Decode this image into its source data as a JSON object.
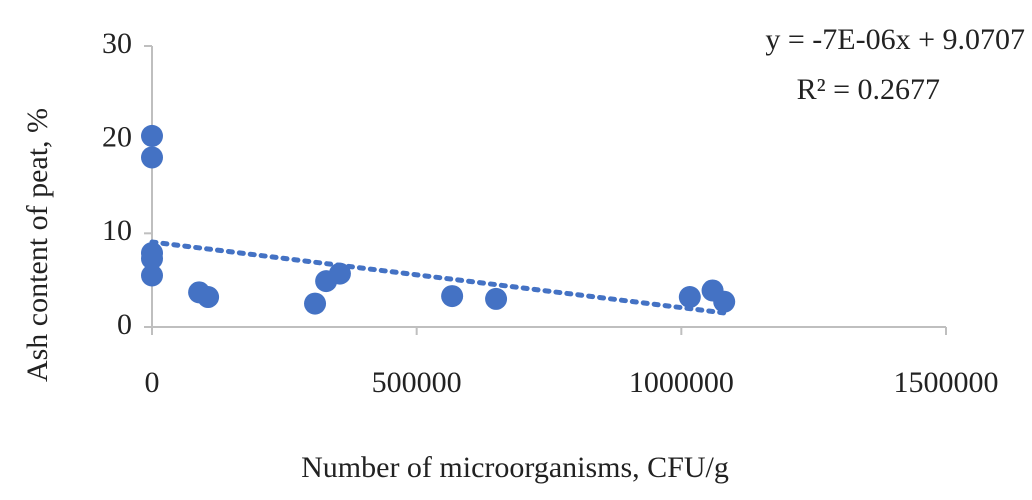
{
  "chart_data": {
    "type": "scatter",
    "x_label": "Number of microorganisms, CFU/g",
    "y_label": "Ash content of peat, %",
    "annotations": [
      "y = -7E-06x + 9.0707",
      "R² = 0.2677"
    ],
    "color": "#4472c4",
    "series": [
      {
        "x": [
          0,
          0,
          0,
          0,
          0,
          89000,
          106000,
          308000,
          329000,
          355000,
          567000,
          650000,
          1016000,
          1059000,
          1081000
        ],
        "values": [
          20.4,
          18.1,
          7.9,
          7.3,
          5.5,
          3.7,
          3.2,
          2.5,
          4.9,
          5.7,
          3.3,
          3.0,
          3.2,
          3.9,
          2.7
        ]
      }
    ],
    "trendline": {
      "slope": -7e-06,
      "intercept": 9.0707
    },
    "xlim": [
      0,
      1500000
    ],
    "xticks": [
      0,
      500000,
      1000000,
      1500000
    ],
    "ylim": [
      0,
      30
    ],
    "yticks": [
      0,
      10,
      20,
      30
    ],
    "grid": false
  }
}
